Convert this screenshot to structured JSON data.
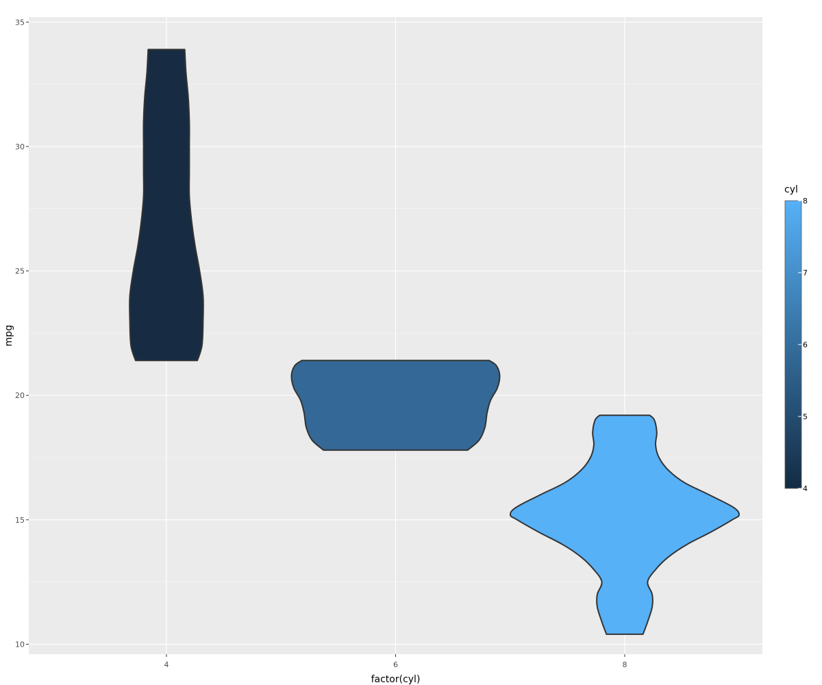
{
  "chart_data": {
    "type": "violin",
    "title": "",
    "xlabel": "factor(cyl)",
    "ylabel": "mpg",
    "categories": [
      "4",
      "6",
      "8"
    ],
    "ylim": [
      9.6,
      35.2
    ],
    "yticks": [
      10,
      15,
      20,
      25,
      30,
      35
    ],
    "grid": true,
    "colors": {
      "panel_bg": "#ebebeb",
      "grid": "#ffffff",
      "outline": "#333333",
      "scale_low": "#132b43",
      "scale_high": "#56b1f7"
    },
    "series": [
      {
        "category": "4",
        "fill_value": 4,
        "fill": "#172c43",
        "profile": [
          [
            21.4,
            0.27
          ],
          [
            22.0,
            0.31
          ],
          [
            23.0,
            0.32
          ],
          [
            24.0,
            0.32
          ],
          [
            25.0,
            0.29
          ],
          [
            26.0,
            0.25
          ],
          [
            27.0,
            0.22
          ],
          [
            28.0,
            0.2
          ],
          [
            29.0,
            0.2
          ],
          [
            30.0,
            0.2
          ],
          [
            31.0,
            0.2
          ],
          [
            32.0,
            0.19
          ],
          [
            33.0,
            0.17
          ],
          [
            33.9,
            0.16
          ]
        ]
      },
      {
        "category": "6",
        "fill_value": 6,
        "fill": "#346896",
        "profile": [
          [
            17.8,
            0.63
          ],
          [
            18.2,
            0.73
          ],
          [
            18.7,
            0.78
          ],
          [
            19.3,
            0.8
          ],
          [
            19.8,
            0.83
          ],
          [
            20.3,
            0.89
          ],
          [
            20.8,
            0.91
          ],
          [
            21.2,
            0.88
          ],
          [
            21.4,
            0.82
          ]
        ]
      },
      {
        "category": "8",
        "fill_value": 8,
        "fill": "#56b1f7",
        "profile": [
          [
            10.4,
            0.16
          ],
          [
            10.9,
            0.2
          ],
          [
            11.5,
            0.24
          ],
          [
            12.0,
            0.24
          ],
          [
            12.5,
            0.2
          ],
          [
            13.0,
            0.27
          ],
          [
            13.5,
            0.38
          ],
          [
            14.0,
            0.54
          ],
          [
            14.5,
            0.75
          ],
          [
            15.0,
            0.94
          ],
          [
            15.2,
            1.0
          ],
          [
            15.5,
            0.95
          ],
          [
            16.0,
            0.74
          ],
          [
            16.5,
            0.52
          ],
          [
            17.0,
            0.38
          ],
          [
            17.5,
            0.3
          ],
          [
            18.0,
            0.27
          ],
          [
            18.5,
            0.28
          ],
          [
            19.0,
            0.26
          ],
          [
            19.2,
            0.22
          ]
        ]
      }
    ],
    "legend": {
      "title": "cyl",
      "ticks": [
        "4",
        "5",
        "6",
        "7",
        "8"
      ],
      "range": [
        4,
        8
      ],
      "position": "right"
    }
  }
}
